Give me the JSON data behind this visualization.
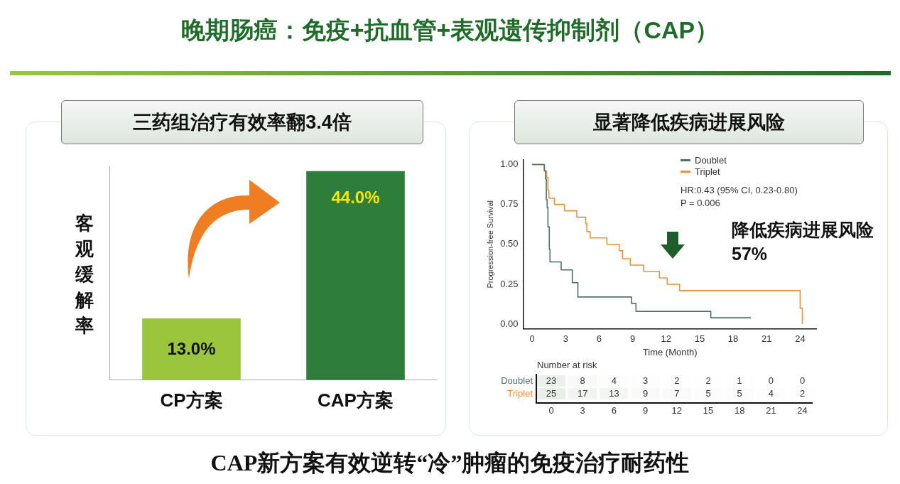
{
  "chart_data": [
    {
      "type": "other",
      "title": "晚期肠癌：免疫+抗血管+表观遗传抑制剂（CAP）",
      "annotations": [
        "CAP新方案有效逆转“冷”肿瘤的免疫治疗耐药性"
      ]
    },
    {
      "type": "bar",
      "title": "三药组治疗有效率翻3.4倍",
      "ylabel": "客观缓解率",
      "categories": [
        "CP方案",
        "CAP方案"
      ],
      "values": [
        13.0,
        44.0
      ],
      "colors": [
        "#9bc53d",
        "#2e7d3a"
      ],
      "value_labels": [
        "13.0%",
        "44.0%"
      ]
    },
    {
      "type": "step",
      "title": "显著降低疾病进展风险",
      "xlabel": "Time (Month)",
      "ylabel": "Progression-free Survival",
      "xlim": [
        -0.8,
        25.5
      ],
      "xticks": [
        0,
        3,
        6,
        9,
        12,
        15,
        18,
        21,
        24
      ],
      "ylim": [
        -0.03,
        1.03
      ],
      "yticks": [
        {
          "value": 0,
          "label": "0.00"
        },
        {
          "value": 0.25,
          "label": "0.25"
        },
        {
          "value": 0.5,
          "label": "0.50"
        },
        {
          "value": 0.75,
          "label": "0.75"
        },
        {
          "value": 1,
          "label": "1.00"
        }
      ],
      "legend": "top right",
      "series": [
        {
          "name": "Doublet",
          "color": "#4f6f6c",
          "x": [
            0,
            1.1,
            1.2,
            1.27,
            1.35,
            1.42,
            1.54,
            1.6,
            2.6,
            3.6,
            4.1,
            8.9,
            9.3,
            16.0,
            19.6
          ],
          "values": [
            1.0,
            0.96,
            0.91,
            0.78,
            0.73,
            0.61,
            0.47,
            0.39,
            0.34,
            0.26,
            0.17,
            0.13,
            0.08,
            0.04,
            0.04
          ]
        },
        {
          "name": "Triplet",
          "color": "#e8913a",
          "x": [
            0,
            1.1,
            1.3,
            1.42,
            1.5,
            2.0,
            2.9,
            4.0,
            4.8,
            4.9,
            5.2,
            6.7,
            7.8,
            8.1,
            8.8,
            10.0,
            11.4,
            12.1,
            13.2,
            24.0,
            24.2
          ],
          "values": [
            1.0,
            0.96,
            0.92,
            0.84,
            0.79,
            0.75,
            0.71,
            0.67,
            0.63,
            0.58,
            0.54,
            0.5,
            0.46,
            0.41,
            0.37,
            0.33,
            0.29,
            0.25,
            0.21,
            0.1,
            0.0
          ]
        }
      ],
      "annotations": [
        "HR:0.43 (95% CI, 0.23-0.80)",
        "P = 0.006",
        "降低疾病进展风险57%"
      ]
    },
    {
      "type": "heatmap",
      "title": "Number at risk",
      "categories": [
        "0",
        "3",
        "6",
        "9",
        "12",
        "15",
        "18",
        "21",
        "24"
      ],
      "y_categories": [
        "Doublet",
        "Triplet"
      ],
      "cells": [
        [
          23,
          8,
          4,
          3,
          2,
          2,
          1,
          0,
          0
        ],
        [
          25,
          17,
          13,
          9,
          7,
          5,
          5,
          4,
          2
        ]
      ],
      "cell_labels": [
        [
          "23",
          "8",
          "4",
          "3",
          "2",
          "2",
          "1",
          "0",
          "0"
        ],
        [
          "25",
          "17",
          "13",
          "9",
          "7",
          "5",
          "5",
          "4",
          "2"
        ]
      ]
    }
  ]
}
